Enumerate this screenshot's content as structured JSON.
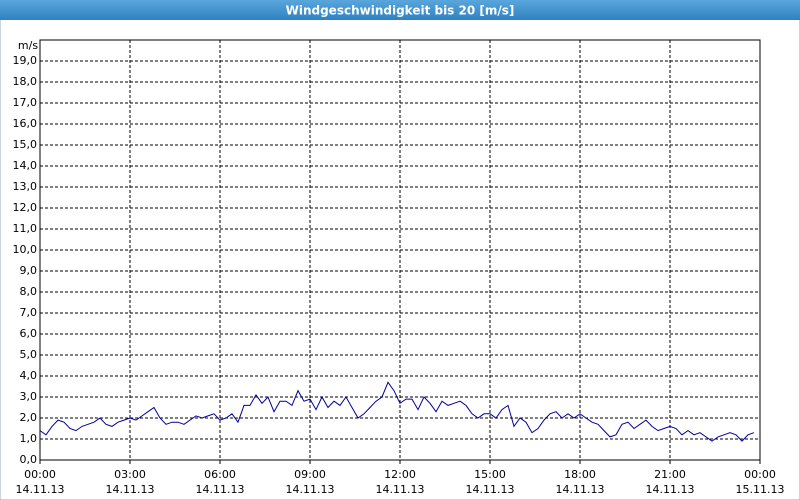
{
  "chart_data": {
    "type": "line",
    "title": "Windgeschwindigkeit bis 20 [m/s]",
    "y_unit": "m/s",
    "xlim": [
      0,
      24
    ],
    "xticks": [
      {
        "value": 0,
        "label": "00:00",
        "date": "14.11.13"
      },
      {
        "value": 3,
        "label": "03:00",
        "date": "14.11.13"
      },
      {
        "value": 6,
        "label": "06:00",
        "date": "14.11.13"
      },
      {
        "value": 9,
        "label": "09:00",
        "date": "14.11.13"
      },
      {
        "value": 12,
        "label": "12:00",
        "date": "14.11.13"
      },
      {
        "value": 15,
        "label": "15:00",
        "date": "14.11.13"
      },
      {
        "value": 18,
        "label": "18:00",
        "date": "14.11.13"
      },
      {
        "value": 21,
        "label": "21:00",
        "date": "14.11.13"
      },
      {
        "value": 24,
        "label": "00:00",
        "date": "15.11.13"
      }
    ],
    "ylim": [
      0,
      20
    ],
    "yticks": [
      {
        "value": 0,
        "label": "0,0"
      },
      {
        "value": 1,
        "label": "1,0"
      },
      {
        "value": 2,
        "label": "2,0"
      },
      {
        "value": 3,
        "label": "3,0"
      },
      {
        "value": 4,
        "label": "4,0"
      },
      {
        "value": 5,
        "label": "5,0"
      },
      {
        "value": 6,
        "label": "6,0"
      },
      {
        "value": 7,
        "label": "7,0"
      },
      {
        "value": 8,
        "label": "8,0"
      },
      {
        "value": 9,
        "label": "9,0"
      },
      {
        "value": 10,
        "label": "10,0"
      },
      {
        "value": 11,
        "label": "11,0"
      },
      {
        "value": 12,
        "label": "12,0"
      },
      {
        "value": 13,
        "label": "13,0"
      },
      {
        "value": 14,
        "label": "14,0"
      },
      {
        "value": 15,
        "label": "15,0"
      },
      {
        "value": 16,
        "label": "16,0"
      },
      {
        "value": 17,
        "label": "17,0"
      },
      {
        "value": 18,
        "label": "18,0"
      },
      {
        "value": 19,
        "label": "19,0"
      }
    ],
    "grid": true,
    "x": [
      0,
      0.2,
      0.4,
      0.6,
      0.8,
      1,
      1.2,
      1.4,
      1.6,
      1.8,
      2,
      2.2,
      2.4,
      2.6,
      2.8,
      3,
      3.2,
      3.4,
      3.6,
      3.8,
      4,
      4.2,
      4.4,
      4.6,
      4.8,
      5,
      5.2,
      5.4,
      5.6,
      5.8,
      6,
      6.2,
      6.4,
      6.6,
      6.8,
      7,
      7.2,
      7.4,
      7.6,
      7.8,
      8,
      8.2,
      8.4,
      8.6,
      8.8,
      9,
      9.2,
      9.4,
      9.6,
      9.8,
      10,
      10.2,
      10.4,
      10.6,
      10.8,
      11,
      11.2,
      11.4,
      11.6,
      11.8,
      12,
      12.2,
      12.4,
      12.6,
      12.8,
      13,
      13.2,
      13.4,
      13.6,
      13.8,
      14,
      14.2,
      14.4,
      14.6,
      14.8,
      15,
      15.2,
      15.4,
      15.6,
      15.8,
      16,
      16.2,
      16.4,
      16.6,
      16.8,
      17,
      17.2,
      17.4,
      17.6,
      17.8,
      18,
      18.2,
      18.4,
      18.6,
      18.8,
      19,
      19.2,
      19.4,
      19.6,
      19.8,
      20,
      20.2,
      20.4,
      20.6,
      20.8,
      21,
      21.2,
      21.4,
      21.6,
      21.8,
      22,
      22.2,
      22.4,
      22.6,
      22.8,
      23,
      23.2,
      23.4,
      23.6,
      23.8
    ],
    "series": [
      {
        "color": "#00009c",
        "values": [
          1.4,
          1.2,
          1.6,
          1.9,
          1.8,
          1.5,
          1.4,
          1.6,
          1.7,
          1.8,
          2.0,
          1.7,
          1.6,
          1.8,
          1.9,
          2.0,
          1.9,
          2.1,
          2.3,
          2.5,
          2.0,
          1.7,
          1.8,
          1.8,
          1.7,
          1.9,
          2.1,
          2.0,
          2.1,
          2.2,
          1.9,
          2.0,
          2.2,
          1.8,
          2.6,
          2.6,
          3.1,
          2.7,
          3.0,
          2.3,
          2.8,
          2.8,
          2.6,
          3.3,
          2.8,
          2.9,
          2.4,
          3.0,
          2.5,
          2.8,
          2.6,
          3.0,
          2.5,
          2.0,
          2.2,
          2.5,
          2.8,
          3.0,
          3.7,
          3.3,
          2.7,
          2.9,
          2.9,
          2.4,
          3.0,
          2.7,
          2.3,
          2.8,
          2.6,
          2.7,
          2.8,
          2.6,
          2.2,
          2.0,
          2.2,
          2.2,
          2.0,
          2.4,
          2.6,
          1.6,
          2.0,
          1.8,
          1.3,
          1.5,
          1.9,
          2.2,
          2.3,
          2.0,
          2.2,
          2.0,
          2.2,
          2.0,
          1.8,
          1.7,
          1.4,
          1.1,
          1.2,
          1.7,
          1.8,
          1.5,
          1.7,
          1.9,
          1.6,
          1.4,
          1.5,
          1.6,
          1.5,
          1.2,
          1.4,
          1.2,
          1.3,
          1.1,
          0.9,
          1.1,
          1.2,
          1.3,
          1.2,
          0.9,
          1.2,
          1.3
        ]
      }
    ]
  }
}
